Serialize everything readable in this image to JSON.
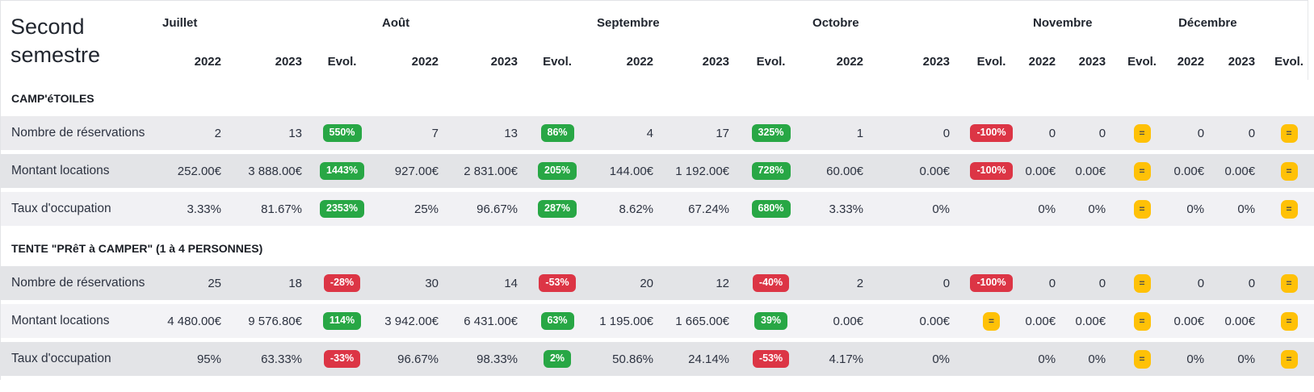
{
  "title": "Second semestre",
  "months": [
    {
      "label": "Juillet"
    },
    {
      "label": "Août"
    },
    {
      "label": "Septembre"
    },
    {
      "label": "Octobre"
    },
    {
      "label": "Novembre"
    },
    {
      "label": "Décembre"
    }
  ],
  "year_columns": [
    "2022",
    "2023",
    "Evol."
  ],
  "badge_colors": {
    "up": "#28a745",
    "down": "#dc3545",
    "equal": "#ffc107"
  },
  "sections": [
    {
      "title": "CAMP'éTOILES",
      "rows": [
        {
          "label": "Nombre de réservations",
          "cells": [
            {
              "y2022": "2",
              "y2023": "13",
              "evol": "550%",
              "trend": "up"
            },
            {
              "y2022": "7",
              "y2023": "13",
              "evol": "86%",
              "trend": "up"
            },
            {
              "y2022": "4",
              "y2023": "17",
              "evol": "325%",
              "trend": "up"
            },
            {
              "y2022": "1",
              "y2023": "0",
              "evol": "-100%",
              "trend": "down"
            },
            {
              "y2022": "0",
              "y2023": "0",
              "evol": "=",
              "trend": "equal"
            },
            {
              "y2022": "0",
              "y2023": "0",
              "evol": "=",
              "trend": "equal"
            }
          ]
        },
        {
          "label": "Montant locations",
          "cells": [
            {
              "y2022": "252.00€",
              "y2023": "3 888.00€",
              "evol": "1443%",
              "trend": "up"
            },
            {
              "y2022": "927.00€",
              "y2023": "2 831.00€",
              "evol": "205%",
              "trend": "up"
            },
            {
              "y2022": "144.00€",
              "y2023": "1 192.00€",
              "evol": "728%",
              "trend": "up"
            },
            {
              "y2022": "60.00€",
              "y2023": "0.00€",
              "evol": "-100%",
              "trend": "down"
            },
            {
              "y2022": "0.00€",
              "y2023": "0.00€",
              "evol": "=",
              "trend": "equal"
            },
            {
              "y2022": "0.00€",
              "y2023": "0.00€",
              "evol": "=",
              "trend": "equal"
            }
          ]
        },
        {
          "label": "Taux d'occupation",
          "cells": [
            {
              "y2022": "3.33%",
              "y2023": "81.67%",
              "evol": "2353%",
              "trend": "up"
            },
            {
              "y2022": "25%",
              "y2023": "96.67%",
              "evol": "287%",
              "trend": "up"
            },
            {
              "y2022": "8.62%",
              "y2023": "67.24%",
              "evol": "680%",
              "trend": "up"
            },
            {
              "y2022": "3.33%",
              "y2023": "0%",
              "evol": "",
              "trend": "none"
            },
            {
              "y2022": "0%",
              "y2023": "0%",
              "evol": "=",
              "trend": "equal"
            },
            {
              "y2022": "0%",
              "y2023": "0%",
              "evol": "=",
              "trend": "equal"
            }
          ]
        }
      ]
    },
    {
      "title": "TENTE \"PRêT à CAMPER\" (1 à 4 PERSONNES)",
      "rows": [
        {
          "label": "Nombre de réservations",
          "cells": [
            {
              "y2022": "25",
              "y2023": "18",
              "evol": "-28%",
              "trend": "down"
            },
            {
              "y2022": "30",
              "y2023": "14",
              "evol": "-53%",
              "trend": "down"
            },
            {
              "y2022": "20",
              "y2023": "12",
              "evol": "-40%",
              "trend": "down"
            },
            {
              "y2022": "2",
              "y2023": "0",
              "evol": "-100%",
              "trend": "down"
            },
            {
              "y2022": "0",
              "y2023": "0",
              "evol": "=",
              "trend": "equal"
            },
            {
              "y2022": "0",
              "y2023": "0",
              "evol": "=",
              "trend": "equal"
            }
          ]
        },
        {
          "label": "Montant locations",
          "cells": [
            {
              "y2022": "4 480.00€",
              "y2023": "9 576.80€",
              "evol": "114%",
              "trend": "up"
            },
            {
              "y2022": "3 942.00€",
              "y2023": "6 431.00€",
              "evol": "63%",
              "trend": "up"
            },
            {
              "y2022": "1 195.00€",
              "y2023": "1 665.00€",
              "evol": "39%",
              "trend": "up"
            },
            {
              "y2022": "0.00€",
              "y2023": "0.00€",
              "evol": "=",
              "trend": "equal"
            },
            {
              "y2022": "0.00€",
              "y2023": "0.00€",
              "evol": "=",
              "trend": "equal"
            },
            {
              "y2022": "0.00€",
              "y2023": "0.00€",
              "evol": "=",
              "trend": "equal"
            }
          ]
        },
        {
          "label": "Taux d'occupation",
          "cells": [
            {
              "y2022": "95%",
              "y2023": "63.33%",
              "evol": "-33%",
              "trend": "down"
            },
            {
              "y2022": "96.67%",
              "y2023": "98.33%",
              "evol": "2%",
              "trend": "up"
            },
            {
              "y2022": "50.86%",
              "y2023": "24.14%",
              "evol": "-53%",
              "trend": "down"
            },
            {
              "y2022": "4.17%",
              "y2023": "0%",
              "evol": "",
              "trend": "none"
            },
            {
              "y2022": "0%",
              "y2023": "0%",
              "evol": "=",
              "trend": "equal"
            },
            {
              "y2022": "0%",
              "y2023": "0%",
              "evol": "=",
              "trend": "equal"
            }
          ]
        }
      ]
    }
  ]
}
